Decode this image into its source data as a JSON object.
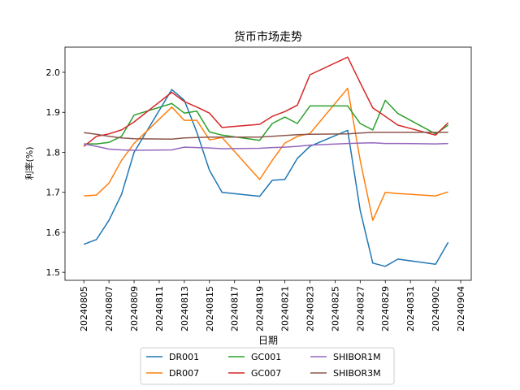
{
  "chart_data": {
    "type": "line",
    "title": "货币市场走势",
    "xlabel": "日期",
    "ylabel": "利率(%)",
    "x": [
      "20240805",
      "20240806",
      "20240807",
      "20240808",
      "20240809",
      "20240812",
      "20240813",
      "20240814",
      "20240815",
      "20240816",
      "20240819",
      "20240820",
      "20240821",
      "20240822",
      "20240823",
      "20240826",
      "20240827",
      "20240828",
      "20240829",
      "20240830",
      "20240902",
      "20240903"
    ],
    "xticks": [
      "20240805",
      "20240807",
      "20240809",
      "20240811",
      "20240813",
      "20240815",
      "20240817",
      "20240819",
      "20240821",
      "20240823",
      "20240825",
      "20240827",
      "20240829",
      "20240831",
      "20240902",
      "20240904"
    ],
    "yticks": [
      "1.5",
      "1.6",
      "1.7",
      "1.8",
      "1.9",
      "2.0"
    ],
    "ylim": [
      1.48,
      2.063
    ],
    "grid": false,
    "legend_position": "bottom",
    "series": [
      {
        "name": "DR001",
        "color": "#1f77b4",
        "values": [
          1.57,
          1.582,
          1.63,
          1.695,
          1.8,
          1.957,
          1.93,
          1.85,
          1.755,
          1.7,
          1.69,
          1.73,
          1.732,
          1.785,
          1.815,
          1.855,
          1.655,
          1.523,
          1.515,
          1.533,
          1.52,
          1.575
        ]
      },
      {
        "name": "DR007",
        "color": "#ff7f0e",
        "values": [
          1.691,
          1.693,
          1.723,
          1.78,
          1.822,
          1.913,
          1.88,
          1.88,
          1.831,
          1.837,
          1.732,
          1.78,
          1.823,
          1.84,
          1.847,
          1.96,
          1.78,
          1.63,
          1.7,
          1.697,
          1.691,
          1.701
        ]
      },
      {
        "name": "GC001",
        "color": "#2ca02c",
        "values": [
          1.821,
          1.821,
          1.825,
          1.84,
          1.893,
          1.922,
          1.898,
          1.903,
          1.851,
          1.843,
          1.83,
          1.872,
          1.888,
          1.872,
          1.916,
          1.916,
          1.872,
          1.856,
          1.93,
          1.897,
          1.846,
          1.868
        ]
      },
      {
        "name": "GC007",
        "color": "#d62728",
        "values": [
          1.815,
          1.84,
          1.846,
          1.856,
          1.876,
          1.95,
          1.927,
          1.913,
          1.898,
          1.862,
          1.87,
          1.89,
          1.902,
          1.918,
          1.994,
          2.038,
          1.974,
          1.911,
          1.89,
          1.868,
          1.843,
          1.874
        ]
      },
      {
        "name": "SHIBOR1M",
        "color": "#9467bd",
        "values": [
          1.821,
          1.815,
          1.808,
          1.806,
          1.805,
          1.806,
          1.813,
          1.812,
          1.811,
          1.809,
          1.81,
          1.812,
          1.813,
          1.815,
          1.818,
          1.822,
          1.823,
          1.824,
          1.822,
          1.822,
          1.821,
          1.822
        ]
      },
      {
        "name": "SHIBOR3M",
        "color": "#8c564b",
        "values": [
          1.849,
          1.845,
          1.84,
          1.836,
          1.834,
          1.833,
          1.836,
          1.837,
          1.838,
          1.838,
          1.838,
          1.84,
          1.842,
          1.844,
          1.845,
          1.846,
          1.848,
          1.85,
          1.85,
          1.85,
          1.85,
          1.85
        ]
      }
    ]
  }
}
